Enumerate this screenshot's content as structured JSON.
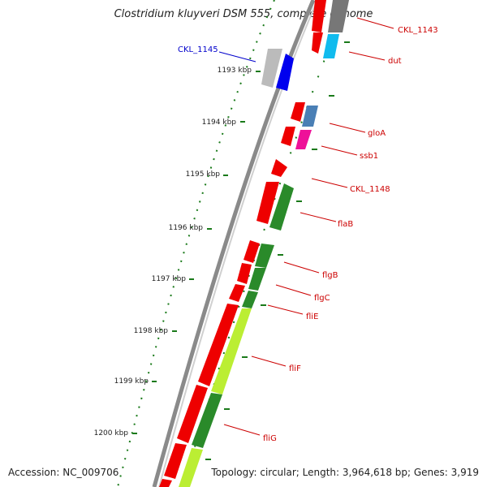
{
  "title": "Clostridium kluyveri DSM 555, complete genome",
  "accession": "Accession: NC_009706",
  "summary": "Topology: circular; Length: 3,964,618 bp; Genes: 3,919",
  "colors": {
    "backbone": "#8a8a8a",
    "tick": "#1a7a1a",
    "label_red": "#cc0000",
    "label_blue": "#0000cc",
    "gene_red": "#ee0000",
    "gene_blue": "#0000ee",
    "gene_grey": "#bbbbbb",
    "gene_darkgrey": "#777777",
    "gene_cyan": "#11bbee",
    "gene_steel": "#4a7fb5",
    "gene_magenta": "#ee1199",
    "gene_green": "#2a8a2a",
    "gene_lime": "#bbee33"
  },
  "kbp_ticks": [
    {
      "label": "1193 kbp"
    },
    {
      "label": "1194 kbp"
    },
    {
      "label": "1195 kbp"
    },
    {
      "label": "1196 kbp"
    },
    {
      "label": "1197 kbp"
    },
    {
      "label": "1198 kbp"
    },
    {
      "label": "1199 kbp"
    },
    {
      "label": "1200 kbp"
    }
  ],
  "gene_labels": [
    {
      "text": "CKL_1143",
      "color": "label_red"
    },
    {
      "text": "CKL_1145",
      "color": "label_blue"
    },
    {
      "text": "dut",
      "color": "label_red"
    },
    {
      "text": "gloA",
      "color": "label_red"
    },
    {
      "text": "ssb1",
      "color": "label_red"
    },
    {
      "text": "CKL_1148",
      "color": "label_red"
    },
    {
      "text": "flaB",
      "color": "label_red"
    },
    {
      "text": "flgB",
      "color": "label_red"
    },
    {
      "text": "flgC",
      "color": "label_red"
    },
    {
      "text": "fliE",
      "color": "label_red"
    },
    {
      "text": "fliF",
      "color": "label_red"
    },
    {
      "text": "fliG",
      "color": "label_red"
    }
  ]
}
